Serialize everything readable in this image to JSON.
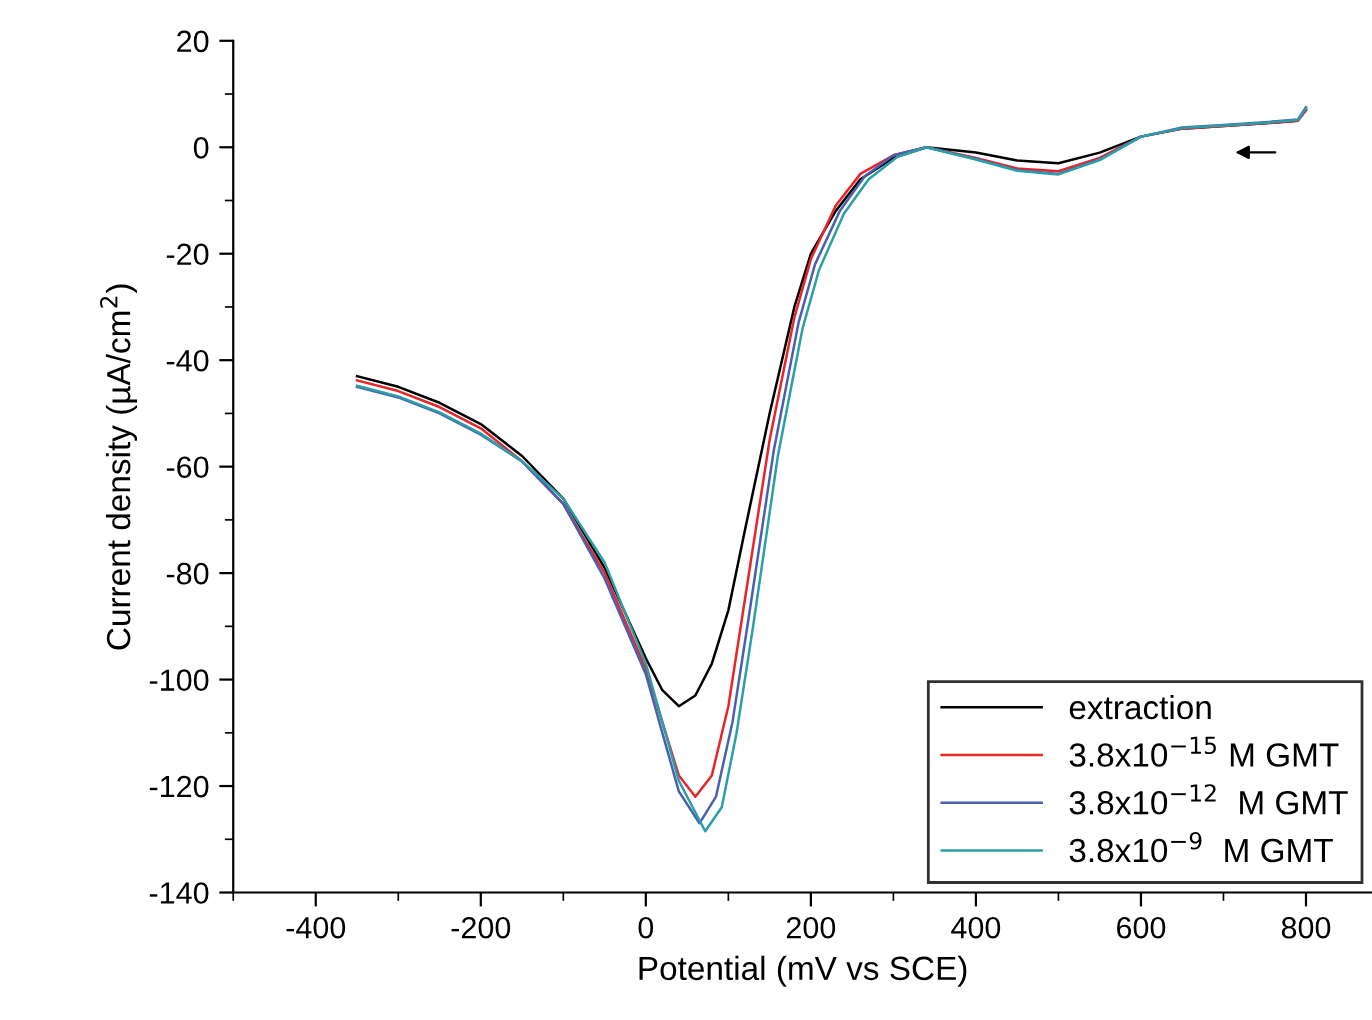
{
  "chart_data": {
    "type": "line",
    "xlabel": "Potential (mV vs SCE)",
    "ylabel": "Current density (µA/cm$^{2}$)",
    "xlim": [
      -500,
      880
    ],
    "ylim": [
      -140,
      20
    ],
    "xticks": [
      {
        "value": -500,
        "label": null
      },
      -400,
      {
        "value": -300,
        "label": null
      },
      -200,
      {
        "value": -100,
        "label": null
      },
      0,
      {
        "value": 100,
        "label": null
      },
      200,
      {
        "value": 300,
        "label": null
      },
      400,
      {
        "value": 500,
        "label": null
      },
      600,
      {
        "value": 700,
        "label": null
      },
      800
    ],
    "yticks": [
      -140,
      {
        "value": -130,
        "label": null
      },
      -120,
      {
        "value": -110,
        "label": null
      },
      -100,
      {
        "value": -90,
        "label": null
      },
      -80,
      {
        "value": -70,
        "label": null
      },
      -60,
      {
        "value": -50,
        "label": null
      },
      -40,
      {
        "value": -30,
        "label": null
      },
      -20,
      {
        "value": -10,
        "label": null
      },
      0,
      {
        "value": 10,
        "label": null
      },
      20
    ],
    "grid": false,
    "legend": "bottom right",
    "line_style": "solid",
    "marker": "none",
    "series": [
      {
        "name": "extraction",
        "color": "#000000",
        "x": [
          -350,
          -300,
          -250,
          -200,
          -150,
          -100,
          -50,
          0,
          20,
          40,
          60,
          80,
          100,
          120,
          150,
          180,
          200,
          230,
          260,
          300,
          340,
          400,
          450,
          500,
          550,
          600,
          650,
          700,
          750,
          790,
          800
        ],
        "values": [
          -43,
          -45,
          -48,
          -52,
          -58,
          -66,
          -79,
          -96,
          -102,
          -105,
          -103,
          -97,
          -87,
          -72,
          -50,
          -30,
          -20,
          -12,
          -6,
          -2,
          0,
          -1,
          -2.5,
          -3,
          -1,
          2,
          3.5,
          4,
          4.5,
          5,
          7
        ]
      },
      {
        "name": "3.8x10$^{−15}$ M GMT",
        "color": "#e8262a",
        "x": [
          -350,
          -300,
          -250,
          -200,
          -150,
          -100,
          -50,
          0,
          20,
          40,
          60,
          80,
          100,
          120,
          150,
          180,
          200,
          230,
          260,
          300,
          340,
          400,
          450,
          500,
          550,
          600,
          650,
          700,
          750,
          790,
          800
        ],
        "values": [
          -43.8,
          -45.8,
          -48.8,
          -52.8,
          -59,
          -67,
          -80,
          -98,
          -108,
          -118,
          -122,
          -118,
          -105,
          -85,
          -55,
          -32,
          -21,
          -11,
          -5,
          -1.5,
          0,
          -2,
          -4,
          -4.5,
          -2,
          2,
          3.5,
          4,
          4.5,
          5,
          7
        ]
      },
      {
        "name": "3.8x10$^{−12}$  M GMT",
        "color": "#4a5fb0",
        "x": [
          -350,
          -300,
          -250,
          -200,
          -150,
          -100,
          -50,
          0,
          20,
          40,
          65,
          85,
          105,
          125,
          155,
          185,
          205,
          235,
          265,
          300,
          340,
          400,
          450,
          500,
          550,
          600,
          650,
          700,
          750,
          790,
          800
        ],
        "values": [
          -45,
          -47,
          -50,
          -54,
          -59,
          -67,
          -81,
          -99,
          -110,
          -121,
          -127,
          -122,
          -108,
          -88,
          -57,
          -33,
          -22,
          -12,
          -5.5,
          -1.5,
          0,
          -2.2,
          -4.3,
          -5,
          -2.3,
          2,
          3.7,
          4.2,
          4.7,
          5.2,
          7.5
        ]
      },
      {
        "name": "3.8x10$^{−9}$  M GMT",
        "color": "#2a9fa8",
        "x": [
          -350,
          -300,
          -250,
          -200,
          -150,
          -100,
          -50,
          0,
          20,
          40,
          72,
          92,
          110,
          130,
          160,
          190,
          210,
          240,
          270,
          305,
          340,
          400,
          450,
          500,
          550,
          600,
          650,
          700,
          750,
          790,
          800
        ],
        "values": [
          -44.8,
          -46.8,
          -49.8,
          -53.8,
          -59,
          -66,
          -78,
          -97,
          -108,
          -119,
          -128.5,
          -124,
          -110,
          -90,
          -58,
          -34,
          -23,
          -12.5,
          -6,
          -1.8,
          0,
          -2.3,
          -4.4,
          -5.1,
          -2.4,
          2,
          3.6,
          4.1,
          4.6,
          5.1,
          7.3
        ]
      }
    ]
  }
}
